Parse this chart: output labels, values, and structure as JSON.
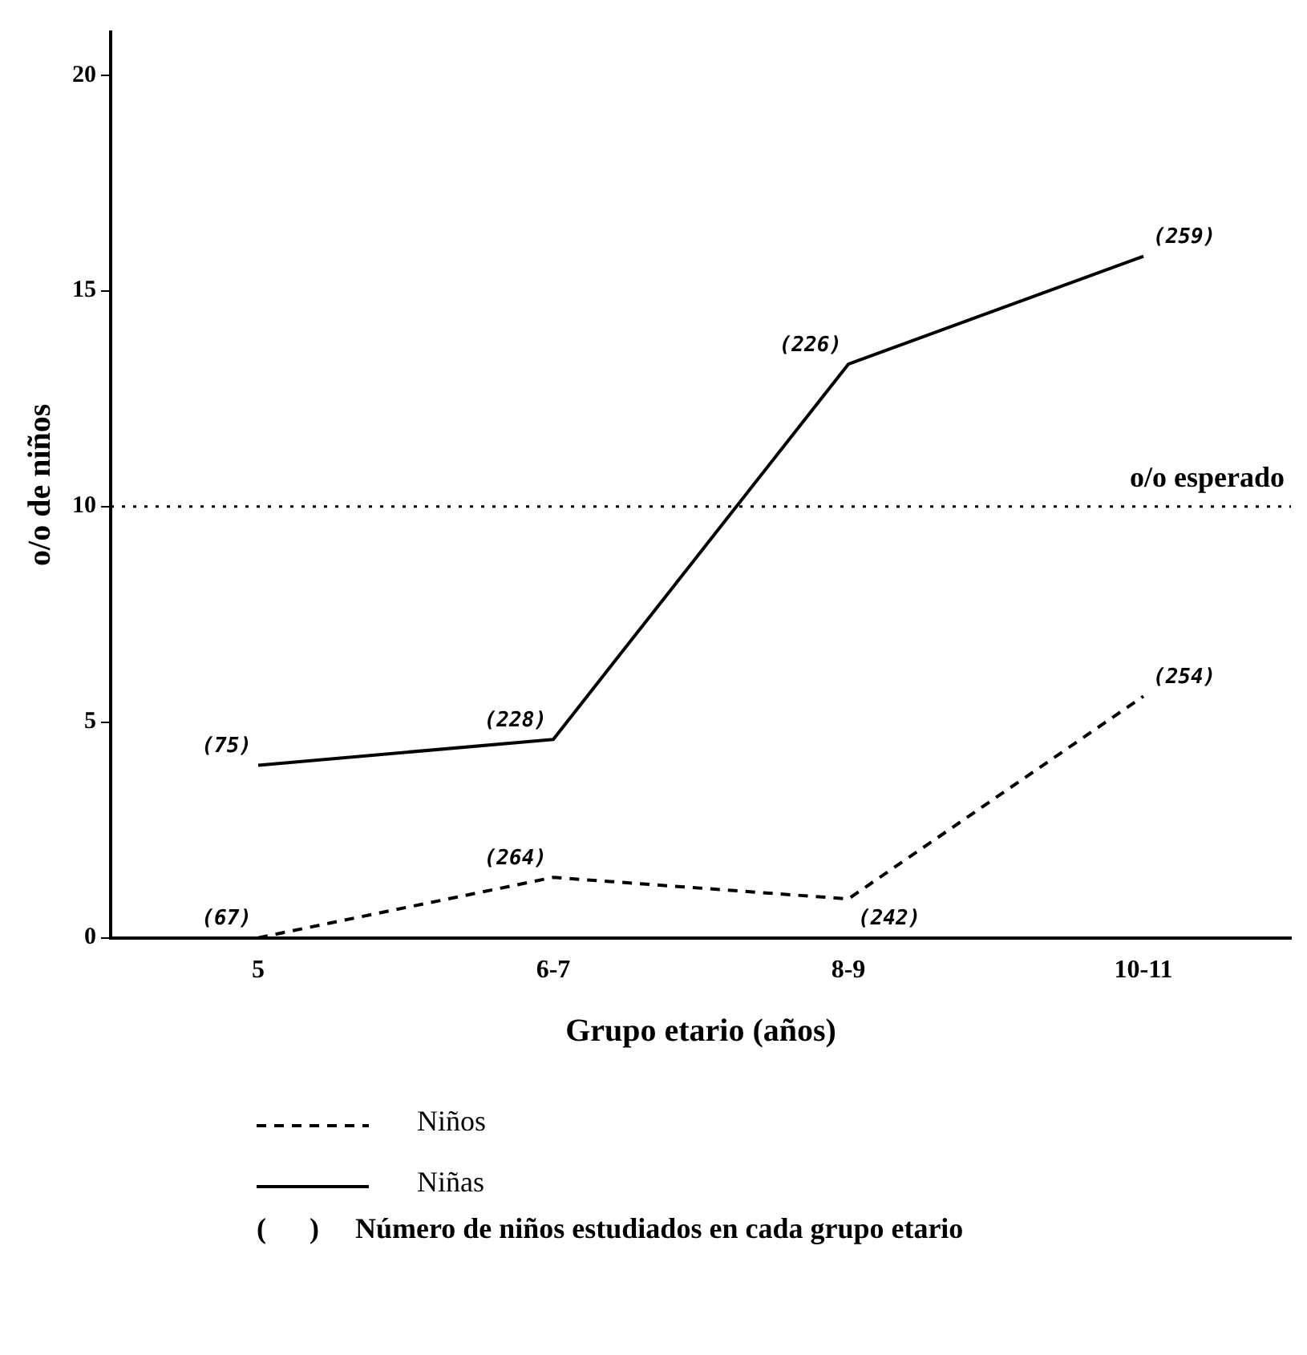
{
  "chart_data": {
    "type": "line",
    "xlabel": "Grupo etario (años)",
    "ylabel": "o/o de niños",
    "categories": [
      "5",
      "6-7",
      "8-9",
      "10-11"
    ],
    "series": [
      {
        "name": "Niños",
        "color": "#000000",
        "line_style": "dashed",
        "values": [
          0,
          1.4,
          0.9,
          5.6
        ]
      },
      {
        "name": "Niñas",
        "color": "#000000",
        "line_style": "solid",
        "values": [
          4.0,
          4.6,
          13.3,
          15.8
        ]
      }
    ],
    "ylim": [
      0,
      21
    ],
    "yticks": [
      0,
      5,
      10,
      15,
      20
    ],
    "grid": false,
    "legend": "bottom",
    "marker": "none",
    "ref_lines": [
      {
        "axis": "y",
        "value": 10,
        "label": "o/o esperado",
        "line_style": "dotted",
        "color": "#000000"
      }
    ],
    "annotations": [
      {
        "text": "(67)",
        "x": "5",
        "y": 0
      },
      {
        "text": "(264)",
        "x": "6-7",
        "y": 1.4
      },
      {
        "text": "(242)",
        "x": "8-9",
        "y": 0.9
      },
      {
        "text": "(254)",
        "x": "10-11",
        "y": 5.6
      },
      {
        "text": "(75)",
        "x": "5",
        "y": 4.0
      },
      {
        "text": "(228)",
        "x": "6-7",
        "y": 4.6
      },
      {
        "text": "(226)",
        "x": "8-9",
        "y": 13.3
      },
      {
        "text": "(259)",
        "x": "10-11",
        "y": 15.8
      },
      "(      )     Número de niños estudiados en cada grupo etario"
    ]
  }
}
